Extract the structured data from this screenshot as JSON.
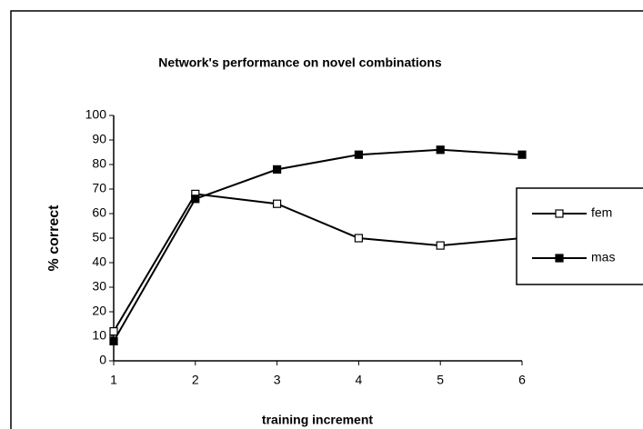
{
  "chart_data": {
    "type": "line",
    "title": "Network's performance on novel combinations",
    "x_label": "training increment",
    "y_label": "% correct",
    "x": [
      1,
      2,
      3,
      4,
      5,
      6
    ],
    "series": [
      {
        "name": "fem",
        "color": "#000000",
        "marker": "open",
        "values": [
          12,
          68,
          64,
          50,
          47,
          50
        ]
      },
      {
        "name": "mas",
        "color": "#000000",
        "marker": "filled",
        "values": [
          8,
          66,
          78,
          84,
          86,
          84
        ]
      }
    ],
    "xlim": [
      1,
      6
    ],
    "xticks": [
      1,
      2,
      3,
      4,
      5,
      6
    ],
    "ylim": [
      0,
      100
    ],
    "yticks": [
      0,
      10,
      20,
      30,
      40,
      50,
      60,
      70,
      80,
      90,
      100
    ],
    "legend": "right",
    "grid": false
  }
}
